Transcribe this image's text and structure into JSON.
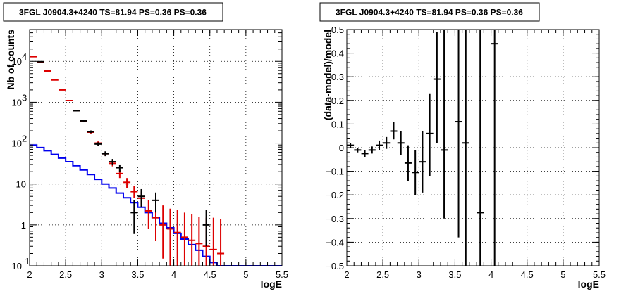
{
  "chart_data": [
    {
      "type": "line",
      "title": "3FGL J0904.3+4240 TS=81.94 PS=0.36 PS=0.36",
      "xlabel": "logE",
      "ylabel": "Nb of counts",
      "xlim": [
        2,
        5.5
      ],
      "ylim": [
        0.1,
        60000
      ],
      "yscale": "log",
      "grid": true,
      "xticks": [
        "2",
        "2.5",
        "3",
        "3.5",
        "4",
        "4.5",
        "5",
        "5.5"
      ],
      "yticks": [
        {
          "value": 0.1,
          "label": "10",
          "exp": "-1"
        },
        {
          "value": 1,
          "label": "1",
          "exp": ""
        },
        {
          "value": 10,
          "label": "10",
          "exp": ""
        },
        {
          "value": 100,
          "label": "10",
          "exp": "2"
        },
        {
          "value": 1000,
          "label": "10",
          "exp": "3"
        },
        {
          "value": 10000,
          "label": "10",
          "exp": "4"
        }
      ],
      "bin_edges": [
        2.0,
        2.1,
        2.2,
        2.3,
        2.4,
        2.5,
        2.6,
        2.7,
        2.8,
        2.9,
        3.0,
        3.1,
        3.2,
        3.3,
        3.4,
        3.5,
        3.6,
        3.7,
        3.8,
        3.9,
        4.0,
        4.1,
        4.2,
        4.3,
        4.4,
        4.5,
        4.6,
        4.7,
        4.8,
        4.9,
        5.0,
        5.1,
        5.2,
        5.3,
        5.4,
        5.5
      ],
      "series": [
        {
          "kind": "model-step",
          "color": "#0000ee",
          "values": [
            90,
            78,
            65,
            53,
            43,
            35,
            28,
            22,
            17,
            13,
            10,
            8,
            6,
            4.6,
            3.5,
            2.7,
            2.0,
            1.5,
            1.1,
            0.85,
            0.62,
            0.45,
            0.33,
            0.24,
            0.17,
            0.12,
            0.1,
            0.1,
            0.1,
            0.1,
            0.1,
            0.1,
            0.1,
            0.1,
            0.1
          ]
        },
        {
          "kind": "data-points",
          "color": "#000000",
          "points": [
            {
              "x": 2.15,
              "y": 9800,
              "lo": 9600,
              "hi": 10000
            },
            {
              "x": 2.65,
              "y": 620,
              "lo": 595,
              "hi": 645
            },
            {
              "x": 2.75,
              "y": 350,
              "lo": 332,
              "hi": 369
            },
            {
              "x": 2.85,
              "y": 190,
              "lo": 177,
              "hi": 204
            },
            {
              "x": 2.95,
              "y": 95,
              "lo": 86,
              "hi": 105
            },
            {
              "x": 3.05,
              "y": 55,
              "lo": 48,
              "hi": 63
            },
            {
              "x": 3.15,
              "y": 35,
              "lo": 29,
              "hi": 41
            },
            {
              "x": 3.25,
              "y": 25,
              "lo": 20,
              "hi": 30
            },
            {
              "x": 3.45,
              "y": 2,
              "lo": 0.6,
              "hi": 4.0
            },
            {
              "x": 3.55,
              "y": 5,
              "lo": 2.7,
              "hi": 7.5
            },
            {
              "x": 3.75,
              "y": 4,
              "lo": 2.0,
              "hi": 6.2
            },
            {
              "x": 4.45,
              "y": 1,
              "lo": 0.3,
              "hi": 2.3
            }
          ]
        },
        {
          "kind": "mc-points",
          "color": "#dd0000",
          "points": [
            {
              "x": 2.05,
              "y": 13000,
              "lo": 12800,
              "hi": 13200
            },
            {
              "x": 2.15,
              "y": 9500,
              "lo": 9350,
              "hi": 9650
            },
            {
              "x": 2.25,
              "y": 5800,
              "lo": 5680,
              "hi": 5920
            },
            {
              "x": 2.35,
              "y": 3500,
              "lo": 3420,
              "hi": 3580
            },
            {
              "x": 2.45,
              "y": 2000,
              "lo": 1950,
              "hi": 2050
            },
            {
              "x": 2.55,
              "y": 1100,
              "lo": 1065,
              "hi": 1135
            },
            {
              "x": 2.65,
              "y": 620,
              "lo": 595,
              "hi": 645
            },
            {
              "x": 2.75,
              "y": 340,
              "lo": 322,
              "hi": 358
            },
            {
              "x": 2.85,
              "y": 185,
              "lo": 172,
              "hi": 198
            },
            {
              "x": 2.95,
              "y": 100,
              "lo": 90,
              "hi": 110
            },
            {
              "x": 3.05,
              "y": 55,
              "lo": 48,
              "hi": 62
            },
            {
              "x": 3.15,
              "y": 32,
              "lo": 27,
              "hi": 38
            },
            {
              "x": 3.25,
              "y": 18,
              "lo": 14,
              "hi": 22
            },
            {
              "x": 3.35,
              "y": 11,
              "lo": 8,
              "hi": 14
            },
            {
              "x": 3.45,
              "y": 6.5,
              "lo": 4.5,
              "hi": 9
            },
            {
              "x": 3.55,
              "y": 4.5,
              "lo": 2.8,
              "hi": 6.5
            },
            {
              "x": 3.65,
              "y": 2.2,
              "lo": 0.8,
              "hi": 4
            },
            {
              "x": 3.75,
              "y": 1.5,
              "lo": 0.4,
              "hi": 3.5
            },
            {
              "x": 3.85,
              "y": 1.0,
              "lo": 0.15,
              "hi": 3
            },
            {
              "x": 3.95,
              "y": 0.8,
              "lo": 0.1,
              "hi": 2.5
            },
            {
              "x": 4.05,
              "y": 0.65,
              "lo": 0.1,
              "hi": 2.3
            },
            {
              "x": 4.15,
              "y": 0.5,
              "lo": 0.1,
              "hi": 2.0
            },
            {
              "x": 4.25,
              "y": 0.42,
              "lo": 0.1,
              "hi": 1.8
            },
            {
              "x": 4.35,
              "y": 0.35,
              "lo": 0.1,
              "hi": 1.6
            },
            {
              "x": 4.45,
              "y": 0.3,
              "lo": 0.1,
              "hi": 1.5
            },
            {
              "x": 4.55,
              "y": 0.25,
              "lo": 0.1,
              "hi": 1.5
            },
            {
              "x": 4.65,
              "y": 0.2,
              "lo": 0.1,
              "hi": 1.4
            }
          ]
        }
      ]
    },
    {
      "type": "scatter",
      "title": "3FGL J0904.3+4240 TS=81.94 PS=0.36 PS=0.36",
      "xlabel": "logE",
      "ylabel": "(data-model)/model",
      "xlim": [
        2,
        5.5
      ],
      "ylim": [
        -0.5,
        0.5
      ],
      "grid": true,
      "xticks": [
        "2",
        "2.5",
        "3",
        "3.5",
        "4",
        "4.5",
        "5",
        "5.5"
      ],
      "yticks": [
        "−0.5",
        "−0.4",
        "−0.3",
        "−0.2",
        "−0.1",
        "0",
        "0.1",
        "0.2",
        "0.3",
        "0.4",
        "0.5"
      ],
      "color": "#000000",
      "points": [
        {
          "x": 2.05,
          "y": 0.01,
          "lo": 0.0,
          "hi": 0.02
        },
        {
          "x": 2.15,
          "y": -0.01,
          "lo": -0.02,
          "hi": 0.0
        },
        {
          "x": 2.25,
          "y": -0.025,
          "lo": -0.04,
          "hi": -0.01
        },
        {
          "x": 2.35,
          "y": -0.01,
          "lo": -0.025,
          "hi": 0.005
        },
        {
          "x": 2.45,
          "y": 0.01,
          "lo": -0.01,
          "hi": 0.03
        },
        {
          "x": 2.55,
          "y": 0.02,
          "lo": -0.005,
          "hi": 0.045
        },
        {
          "x": 2.65,
          "y": 0.07,
          "lo": 0.035,
          "hi": 0.11
        },
        {
          "x": 2.75,
          "y": 0.02,
          "lo": -0.03,
          "hi": 0.07
        },
        {
          "x": 2.85,
          "y": -0.065,
          "lo": -0.14,
          "hi": 0.01
        },
        {
          "x": 2.95,
          "y": -0.105,
          "lo": -0.2,
          "hi": -0.01
        },
        {
          "x": 3.05,
          "y": -0.06,
          "lo": -0.19,
          "hi": 0.07
        },
        {
          "x": 3.15,
          "y": 0.06,
          "lo": -0.12,
          "hi": 0.23
        },
        {
          "x": 3.25,
          "y": 0.29,
          "lo": 0.02,
          "hi": 0.49
        },
        {
          "x": 3.35,
          "y": -0.01,
          "lo": -0.3,
          "hi": 0.5
        },
        {
          "x": 3.55,
          "y": 0.11,
          "lo": -0.38,
          "hi": 0.5
        },
        {
          "x": 3.65,
          "y": 0.02,
          "lo": -0.5,
          "hi": 0.5
        },
        {
          "x": 3.85,
          "y": -0.275,
          "lo": -0.5,
          "hi": 0.5
        },
        {
          "x": 4.05,
          "y": 0.44,
          "lo": -0.5,
          "hi": 0.5
        }
      ]
    }
  ]
}
